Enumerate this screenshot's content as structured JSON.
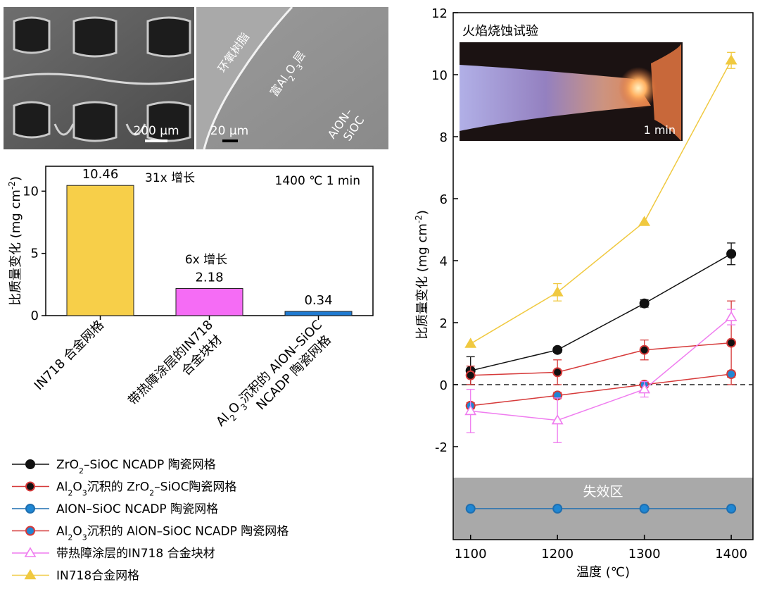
{
  "micrographs": {
    "left_scale": "200 µm",
    "right_scale": "20 µm",
    "label_epoxy": "环氧树脂",
    "label_rich_prefix": "富Al",
    "label_rich_sub1": "2",
    "label_rich_mid": "O",
    "label_rich_sub2": "3",
    "label_rich_suffix": "层",
    "label_alon_line1": "AlON–",
    "label_alon_line2": "SiOC"
  },
  "photo": {
    "title": "火焰烧蚀试验",
    "time": "1 min"
  },
  "failure_zone_label": "失效区",
  "chart_data": [
    {
      "type": "bar",
      "title": "",
      "ylabel_main": "比质量变化 (mg cm",
      "ylabel_sup": "-2",
      "ylabel_end": ")",
      "ylim": [
        0,
        12
      ],
      "yticks": [
        "0",
        "5",
        "10"
      ],
      "condition": "1400 ℃ 1 min",
      "categories": [
        "IN718 合金网格",
        "带热障涂层的IN718 合金块材",
        "Al2O3沉积的 AlON–SiOC NCADP 陶瓷网格"
      ],
      "category_lines": [
        [
          "IN718 合金网格"
        ],
        [
          "带热障涂层的IN718",
          "合金块材"
        ],
        [
          "Al|2|O|3|沉积的 AlON–SiOC",
          "NCADP 陶瓷网格"
        ]
      ],
      "values": [
        10.46,
        2.18,
        0.34
      ],
      "value_labels": [
        "10.46",
        "2.18",
        "0.34"
      ],
      "colors": [
        "#f7cf49",
        "#f56cf5",
        "#1f7ad1"
      ],
      "annotations": [
        "31x 增长",
        "6x 增长"
      ]
    },
    {
      "type": "line",
      "xlabel": "温度 (℃)",
      "ylabel_main": "比质量变化 (mg cm",
      "ylabel_sup": "-2",
      "ylabel_end": ")",
      "xlim": [
        1080,
        1425
      ],
      "ylim": [
        -5,
        12
      ],
      "xticks": [
        "1100",
        "1200",
        "1300",
        "1400"
      ],
      "yticks": [
        "-2",
        "0",
        "2",
        "4",
        "6",
        "8",
        "10",
        "12"
      ],
      "zero_line": true,
      "failure_zone": [
        -5,
        -3
      ],
      "x": [
        1100,
        1200,
        1300,
        1400
      ],
      "series": [
        {
          "name": "ZrO2–SiOC NCADP 陶瓷网格",
          "legend": "ZrO|2|–SiOC NCADP 陶瓷网格",
          "values": [
            0.45,
            1.12,
            2.62,
            4.22
          ],
          "errors": [
            0.45,
            0.08,
            0.12,
            0.35
          ],
          "marker": "circle",
          "color": "#111111",
          "edge": "#111111",
          "fill": "#111111"
        },
        {
          "name": "Al2O3沉积的 ZrO2–SiOC陶瓷网格",
          "legend": "Al|2|O|3|沉积的 ZrO|2|–SiOC陶瓷网格",
          "values": [
            0.3,
            0.4,
            1.12,
            1.35
          ],
          "errors": [
            0.3,
            0.4,
            0.32,
            1.35
          ],
          "marker": "circle",
          "color": "#d63a3a",
          "edge": "#d63a3a",
          "fill": "#111111"
        },
        {
          "name": "AlON–SiOC NCADP 陶瓷网格",
          "legend": "AlON–SiOC NCADP 陶瓷网格",
          "values": [
            -4.0,
            -4.0,
            -4.0,
            -4.0
          ],
          "errors": [
            0,
            0,
            0,
            0
          ],
          "marker": "circle",
          "color": "#1f6fb0",
          "edge": "#1f6fb0",
          "fill": "#1f87d4"
        },
        {
          "name": "Al2O3沉积的 AlON–SiOC NCADP 陶瓷网格",
          "legend": "Al|2|O|3|沉积的 AlON–SiOC NCADP 陶瓷网格",
          "values": [
            -0.68,
            -0.35,
            0.0,
            0.34
          ],
          "errors": [
            0.1,
            0.1,
            0.05,
            0.1
          ],
          "marker": "circle",
          "color": "#d63a3a",
          "edge": "#d63a3a",
          "fill": "#1f87d4"
        },
        {
          "name": "带热障涂层的IN718 合金块材",
          "legend": "带热障涂层的IN718 合金块材",
          "values": [
            -0.85,
            -1.15,
            -0.15,
            2.18
          ],
          "errors": [
            0.7,
            0.72,
            0.25,
            0.25
          ],
          "marker": "triangle-open",
          "color": "#ef7cef",
          "edge": "#ef7cef",
          "fill": "none"
        },
        {
          "name": "IN718合金网格",
          "legend": "IN718合金网格",
          "values": [
            1.32,
            2.98,
            5.25,
            10.46
          ],
          "errors": [
            0.0,
            0.28,
            0.0,
            0.26
          ],
          "marker": "triangle",
          "color": "#f0c940",
          "edge": "#f0c940",
          "fill": "#f0c940"
        }
      ]
    }
  ]
}
